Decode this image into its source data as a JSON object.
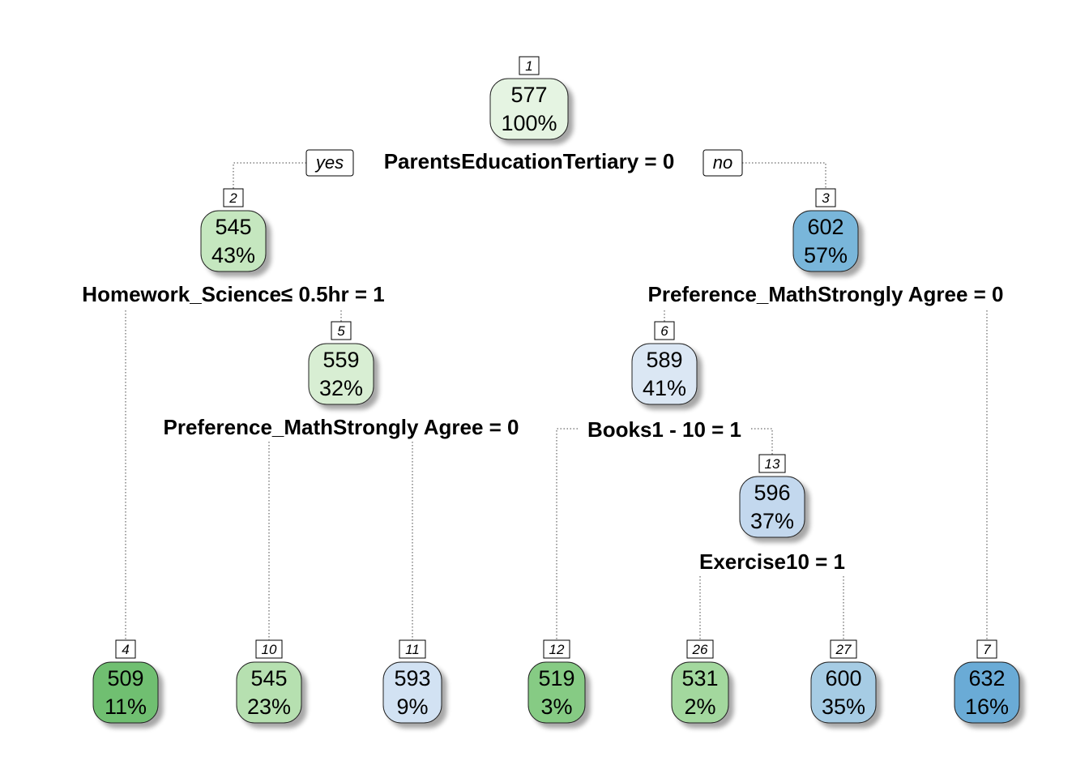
{
  "tree": {
    "yes_label": "yes",
    "no_label": "no",
    "nodes": [
      {
        "id": "1",
        "value": "577",
        "pct": "100%",
        "color": "#e5f4e2"
      },
      {
        "id": "2",
        "value": "545",
        "pct": "43%",
        "color": "#c5e7bf"
      },
      {
        "id": "3",
        "value": "602",
        "pct": "57%",
        "color": "#79b6da"
      },
      {
        "id": "5",
        "value": "559",
        "pct": "32%",
        "color": "#d8eed3"
      },
      {
        "id": "6",
        "value": "589",
        "pct": "41%",
        "color": "#dbe7f4"
      },
      {
        "id": "13",
        "value": "596",
        "pct": "37%",
        "color": "#c3d8ee"
      },
      {
        "id": "4",
        "value": "509",
        "pct": "11%",
        "color": "#6fbf71"
      },
      {
        "id": "10",
        "value": "545",
        "pct": "23%",
        "color": "#b6e0b0"
      },
      {
        "id": "11",
        "value": "593",
        "pct": "9%",
        "color": "#d2e2f3"
      },
      {
        "id": "12",
        "value": "519",
        "pct": "3%",
        "color": "#86cb84"
      },
      {
        "id": "26",
        "value": "531",
        "pct": "2%",
        "color": "#a3d89e"
      },
      {
        "id": "27",
        "value": "600",
        "pct": "35%",
        "color": "#a6cce4"
      },
      {
        "id": "7",
        "value": "632",
        "pct": "16%",
        "color": "#6aabd6"
      }
    ],
    "splits": [
      {
        "node": "1",
        "text": "ParentsEducationTertiary = 0"
      },
      {
        "node": "2",
        "text": "Homework_Science≤ 0.5hr = 1"
      },
      {
        "node": "3",
        "text": "Preference_MathStrongly Agree = 0"
      },
      {
        "node": "5",
        "text": "Preference_MathStrongly Agree = 0"
      },
      {
        "node": "6",
        "text": "Books1 - 10 = 1"
      },
      {
        "node": "13",
        "text": "Exercise10 = 1"
      }
    ]
  }
}
